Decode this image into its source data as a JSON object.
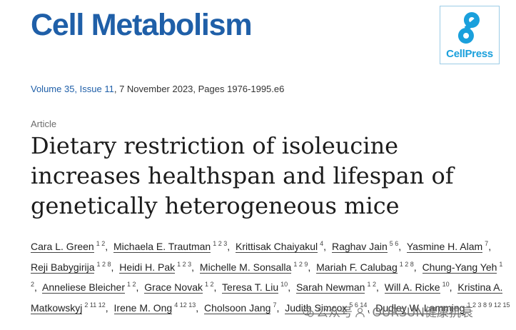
{
  "journal": {
    "title": "Cell Metabolism",
    "logo_text": "CellPress",
    "brand_color": "#1f5fa8",
    "logo_color": "#1aa0dc"
  },
  "citation": {
    "volume_issue": "Volume 35, Issue 11",
    "rest": ", 7 November 2023, Pages 1976-1995.e6"
  },
  "article": {
    "type": "Article",
    "title": "Dietary restriction of isoleucine increases healthspan and lifespan of genetically heterogeneous mice"
  },
  "authors": [
    {
      "name": "Cara L. Green",
      "aff": "1 2"
    },
    {
      "name": "Michaela E. Trautman",
      "aff": "1 2 3"
    },
    {
      "name": "Krittisak Chaiyakul",
      "aff": "4"
    },
    {
      "name": "Raghav Jain",
      "aff": "5 6"
    },
    {
      "name": "Yasmine H. Alam",
      "aff": "7"
    },
    {
      "name": "Reji Babygirija",
      "aff": "1 2 8"
    },
    {
      "name": "Heidi H. Pak",
      "aff": "1 2 3"
    },
    {
      "name": "Michelle M. Sonsalla",
      "aff": "1 2 9"
    },
    {
      "name": "Mariah F. Calubag",
      "aff": "1 2 8"
    },
    {
      "name": "Chung-Yang Yeh",
      "aff": "1 2"
    },
    {
      "name": "Anneliese Bleicher",
      "aff": "1 2"
    },
    {
      "name": "Grace Novak",
      "aff": "1 2"
    },
    {
      "name": "Teresa T. Liu",
      "aff": "10"
    },
    {
      "name": "Sarah Newman",
      "aff": "1 2"
    },
    {
      "name": "Will A. Ricke",
      "aff": "10"
    },
    {
      "name": "Kristina A. Matkowskyj",
      "aff": "2 11 12"
    },
    {
      "name": "Irene M. Ong",
      "aff": "4 12 13"
    },
    {
      "name": "Cholsoon Jang",
      "aff": "7"
    },
    {
      "name": "Judith Simcox",
      "aff": "5 6 14"
    },
    {
      "name": "Dudley W. Lamming",
      "aff": "1 2 3 8 9 12 15"
    }
  ],
  "watermark": {
    "text_left": "公众号",
    "text_right": "OURSUN健康抗衰"
  }
}
